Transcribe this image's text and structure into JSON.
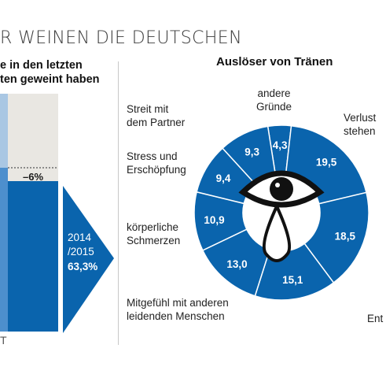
{
  "title": "R WEINEN DIE DEUTSCHEN",
  "left_chart": {
    "heading_lines": [
      "e in den letzten",
      "ten geweint haben"
    ],
    "change_label": "–6%",
    "arrow_lines": [
      "2014",
      "/2015",
      "63,3%"
    ],
    "footer_text": "T"
  },
  "right_chart": {
    "heading": "Auslöser von Tränen"
  },
  "chart_data": [
    {
      "type": "bar",
      "title": "",
      "categories": [
        "2014/2015"
      ],
      "values": [
        63.3
      ],
      "annotations": [
        "–6%"
      ],
      "colors": {
        "bar": "#0a64ad",
        "previous": "#e9e7e2",
        "prior_bar_light": "#a9c7e3"
      }
    },
    {
      "type": "pie",
      "title": "Auslöser von Tränen",
      "categories": [
        "andere Gründe",
        "Verlust stehen…",
        "",
        "Ent…",
        "Mitgefühl mit anderen leidenden Menschen",
        "körperliche Schmerzen",
        "Stress und Erschöpfung",
        "Streit mit dem Partner"
      ],
      "values": [
        4.3,
        19.5,
        18.5,
        15.1,
        13.0,
        10.9,
        9.4,
        9.3
      ],
      "value_labels": [
        "4,3",
        "19,5",
        "18,5",
        "15,1",
        "13,0",
        "10,9",
        "9,4",
        "9,3"
      ],
      "colors": {
        "ring": "#0a64ad",
        "separator": "#ffffff"
      }
    }
  ],
  "outer_labels": [
    {
      "lines": [
        "andere",
        "Gründe"
      ]
    },
    {
      "lines": [
        "Verlust",
        "stehen"
      ]
    },
    {
      "lines": [
        "Ent"
      ]
    },
    {
      "lines": [
        "Mitgefühl mit anderen",
        "leidenden Menschen"
      ]
    },
    {
      "lines": [
        "körperliche",
        "Schmerzen"
      ]
    },
    {
      "lines": [
        "Stress und",
        "Erschöpfung"
      ]
    },
    {
      "lines": [
        "Streit mit",
        "dem Partner"
      ]
    }
  ],
  "icons": [
    "eye-icon",
    "tear-icon"
  ]
}
